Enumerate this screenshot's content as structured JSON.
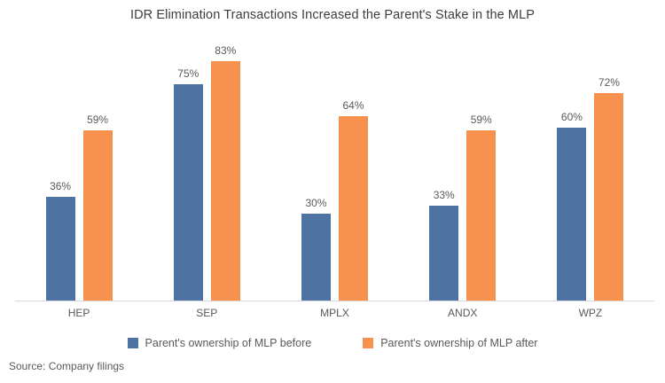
{
  "title": "IDR Elimination Transactions Increased the Parent's Stake in the MLP",
  "source_note": "Source: Company filings",
  "colors": {
    "before_series": "#4C73A2",
    "after_series": "#F6924E",
    "baseline": "#D9D9D9",
    "title_text": "#3D3D3D",
    "label_text": "#595959",
    "background": "#FFFFFF"
  },
  "chart_data": {
    "type": "bar",
    "title": "IDR Elimination Transactions Increased the Parent's Stake in the MLP",
    "categories": [
      "HEP",
      "SEP",
      "MPLX",
      "ANDX",
      "WPZ"
    ],
    "series": [
      {
        "name": "Parent's ownership of MLP before",
        "color": "#4C73A2",
        "values": [
          36,
          75,
          30,
          33,
          60
        ]
      },
      {
        "name": "Parent's ownership of MLP after",
        "color": "#F6924E",
        "values": [
          59,
          83,
          64,
          59,
          72
        ]
      }
    ],
    "value_suffix": "%",
    "xlabel": "",
    "ylabel": "",
    "ylim": [
      0,
      100
    ],
    "grid": false,
    "data_labels": true,
    "legend_position": "bottom"
  }
}
